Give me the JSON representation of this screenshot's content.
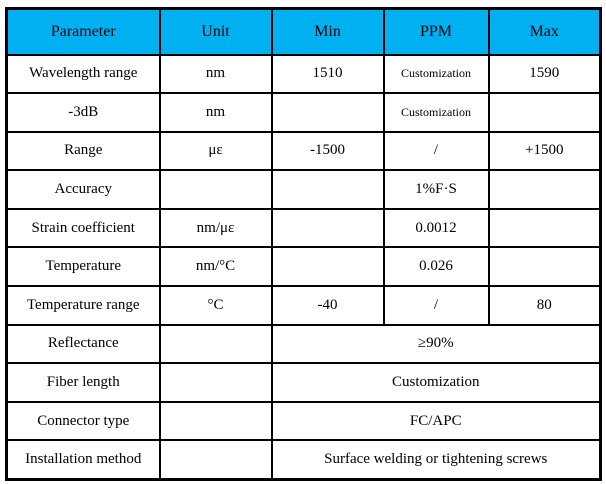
{
  "table": {
    "colors": {
      "header_bg": "#00B0F0",
      "border": "#000000",
      "text": "#000000",
      "page_background": "#FFFFFF"
    },
    "columns": [
      "Parameter",
      "Unit",
      "Min",
      "PPM",
      "Max"
    ],
    "rows": [
      {
        "parameter": "Wavelength range",
        "unit": "nm",
        "min": "1510",
        "ppm": "Customization",
        "max": "1590"
      },
      {
        "parameter": "-3dB",
        "unit": "nm",
        "min": "",
        "ppm": "Customization",
        "max": ""
      },
      {
        "parameter": "Range",
        "unit": "με",
        "min": "-1500",
        "ppm": "/",
        "max": "+1500"
      },
      {
        "parameter": "Accuracy",
        "unit": "",
        "min": "",
        "ppm": "1%F·S",
        "max": ""
      },
      {
        "parameter": "Strain coefficient",
        "unit": "nm/με",
        "min": "",
        "ppm": "0.0012",
        "max": ""
      },
      {
        "parameter": "Temperature",
        "unit": "nm/°C",
        "min": "",
        "ppm": "0.026",
        "max": ""
      },
      {
        "parameter": "Temperature range",
        "unit": "°C",
        "min": "-40",
        "ppm": "/",
        "max": "80"
      },
      {
        "parameter": "Reflectance",
        "unit": "",
        "value": "≥90%"
      },
      {
        "parameter": "Fiber length",
        "unit": "",
        "value": "Customization"
      },
      {
        "parameter": "Connector type",
        "unit": "",
        "value": "FC/APC"
      },
      {
        "parameter": "Installation method",
        "unit": "",
        "value": "Surface welding or tightening screws"
      }
    ]
  }
}
